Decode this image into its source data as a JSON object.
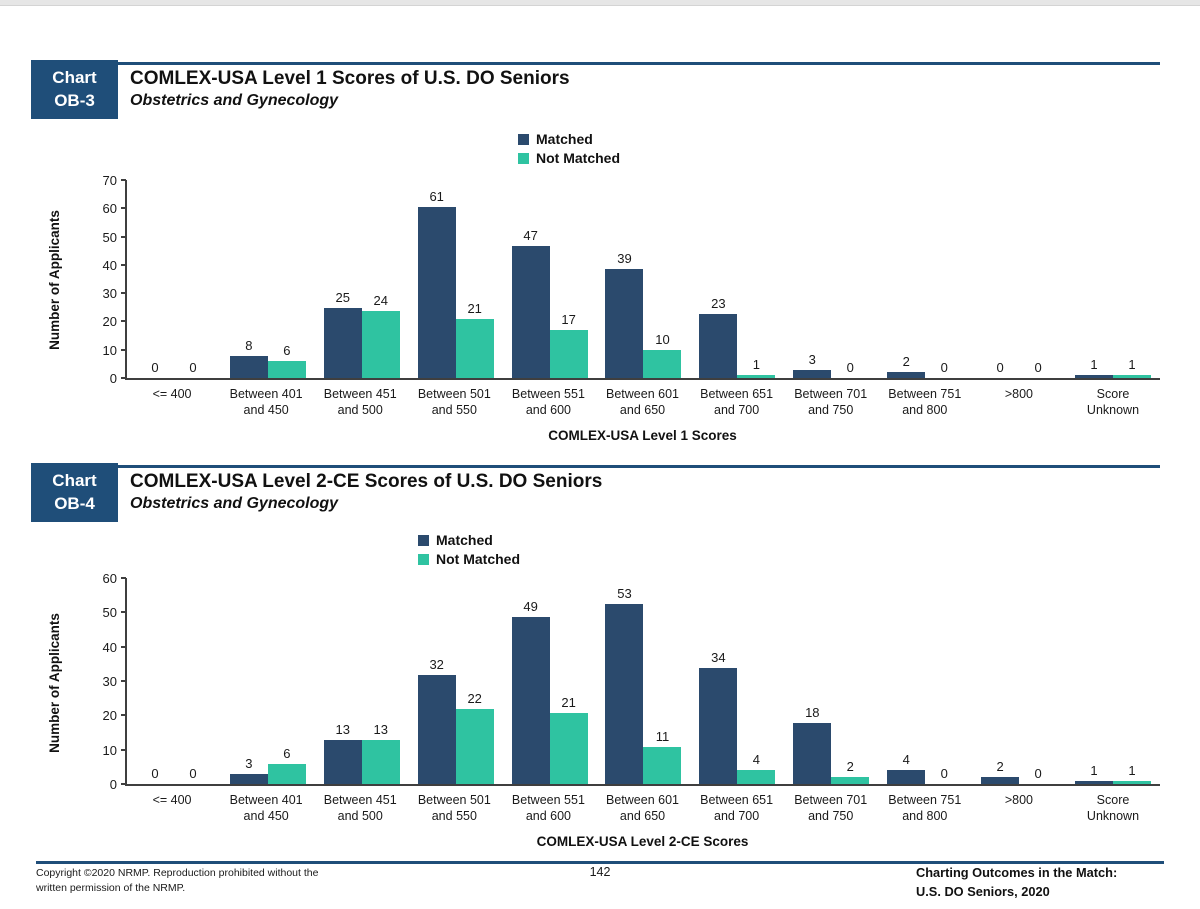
{
  "colors": {
    "matched": "#2B4A6D",
    "not_matched": "#2FC3A1",
    "badge": "#1F4E79",
    "rule": "#1F4E79"
  },
  "chart_data": [
    {
      "type": "bar",
      "badge_line1": "Chart",
      "badge_line2": "OB-3",
      "title": "COMLEX-USA Level 1 Scores of U.S. DO Seniors",
      "subtitle": "Obstetrics and Gynecology",
      "ylabel": "Number of Applicants",
      "xlabel": "COMLEX-USA Level 1 Scores",
      "ylim": [
        0,
        70
      ],
      "ytick_step": 10,
      "grid": false,
      "legend_position": "top-center",
      "categories": [
        [
          "<= 400"
        ],
        [
          "Between 401",
          "and 450"
        ],
        [
          "Between 451",
          "and 500"
        ],
        [
          "Between 501",
          "and 550"
        ],
        [
          "Between 551",
          "and 600"
        ],
        [
          "Between 601",
          "and 650"
        ],
        [
          "Between 651",
          "and 700"
        ],
        [
          "Between 701",
          "and 750"
        ],
        [
          "Between 751",
          "and 800"
        ],
        [
          ">800"
        ],
        [
          "Score",
          "Unknown"
        ]
      ],
      "series": [
        {
          "name": "Matched",
          "color": "#2B4A6D",
          "values": [
            0,
            8,
            25,
            61,
            47,
            39,
            23,
            3,
            2,
            0,
            1
          ]
        },
        {
          "name": "Not Matched",
          "color": "#2FC3A1",
          "values": [
            0,
            6,
            24,
            21,
            17,
            10,
            1,
            0,
            0,
            0,
            1
          ]
        }
      ]
    },
    {
      "type": "bar",
      "badge_line1": "Chart",
      "badge_line2": "OB-4",
      "title": "COMLEX-USA Level 2-CE Scores of U.S. DO Seniors",
      "subtitle": "Obstetrics and Gynecology",
      "ylabel": "Number of Applicants",
      "xlabel": "COMLEX-USA Level 2-CE Scores",
      "ylim": [
        0,
        60
      ],
      "ytick_step": 10,
      "grid": false,
      "legend_position": "top-center",
      "categories": [
        [
          "<= 400"
        ],
        [
          "Between 401",
          "and 450"
        ],
        [
          "Between 451",
          "and 500"
        ],
        [
          "Between 501",
          "and 550"
        ],
        [
          "Between 551",
          "and 600"
        ],
        [
          "Between 601",
          "and 650"
        ],
        [
          "Between 651",
          "and 700"
        ],
        [
          "Between 701",
          "and 750"
        ],
        [
          "Between 751",
          "and 800"
        ],
        [
          ">800"
        ],
        [
          "Score",
          "Unknown"
        ]
      ],
      "series": [
        {
          "name": "Matched",
          "color": "#2B4A6D",
          "values": [
            0,
            3,
            13,
            32,
            49,
            53,
            34,
            18,
            4,
            2,
            1
          ]
        },
        {
          "name": "Not Matched",
          "color": "#2FC3A1",
          "values": [
            0,
            6,
            13,
            22,
            21,
            11,
            4,
            2,
            0,
            0,
            1
          ]
        }
      ]
    }
  ],
  "footer": {
    "copyright_line1": "Copyright ©2020 NRMP. Reproduction prohibited without the",
    "copyright_line2": "written permission of the NRMP.",
    "page_number": "142",
    "right_line1": "Charting Outcomes in the Match:",
    "right_line2": "U.S. DO Seniors, 2020"
  }
}
